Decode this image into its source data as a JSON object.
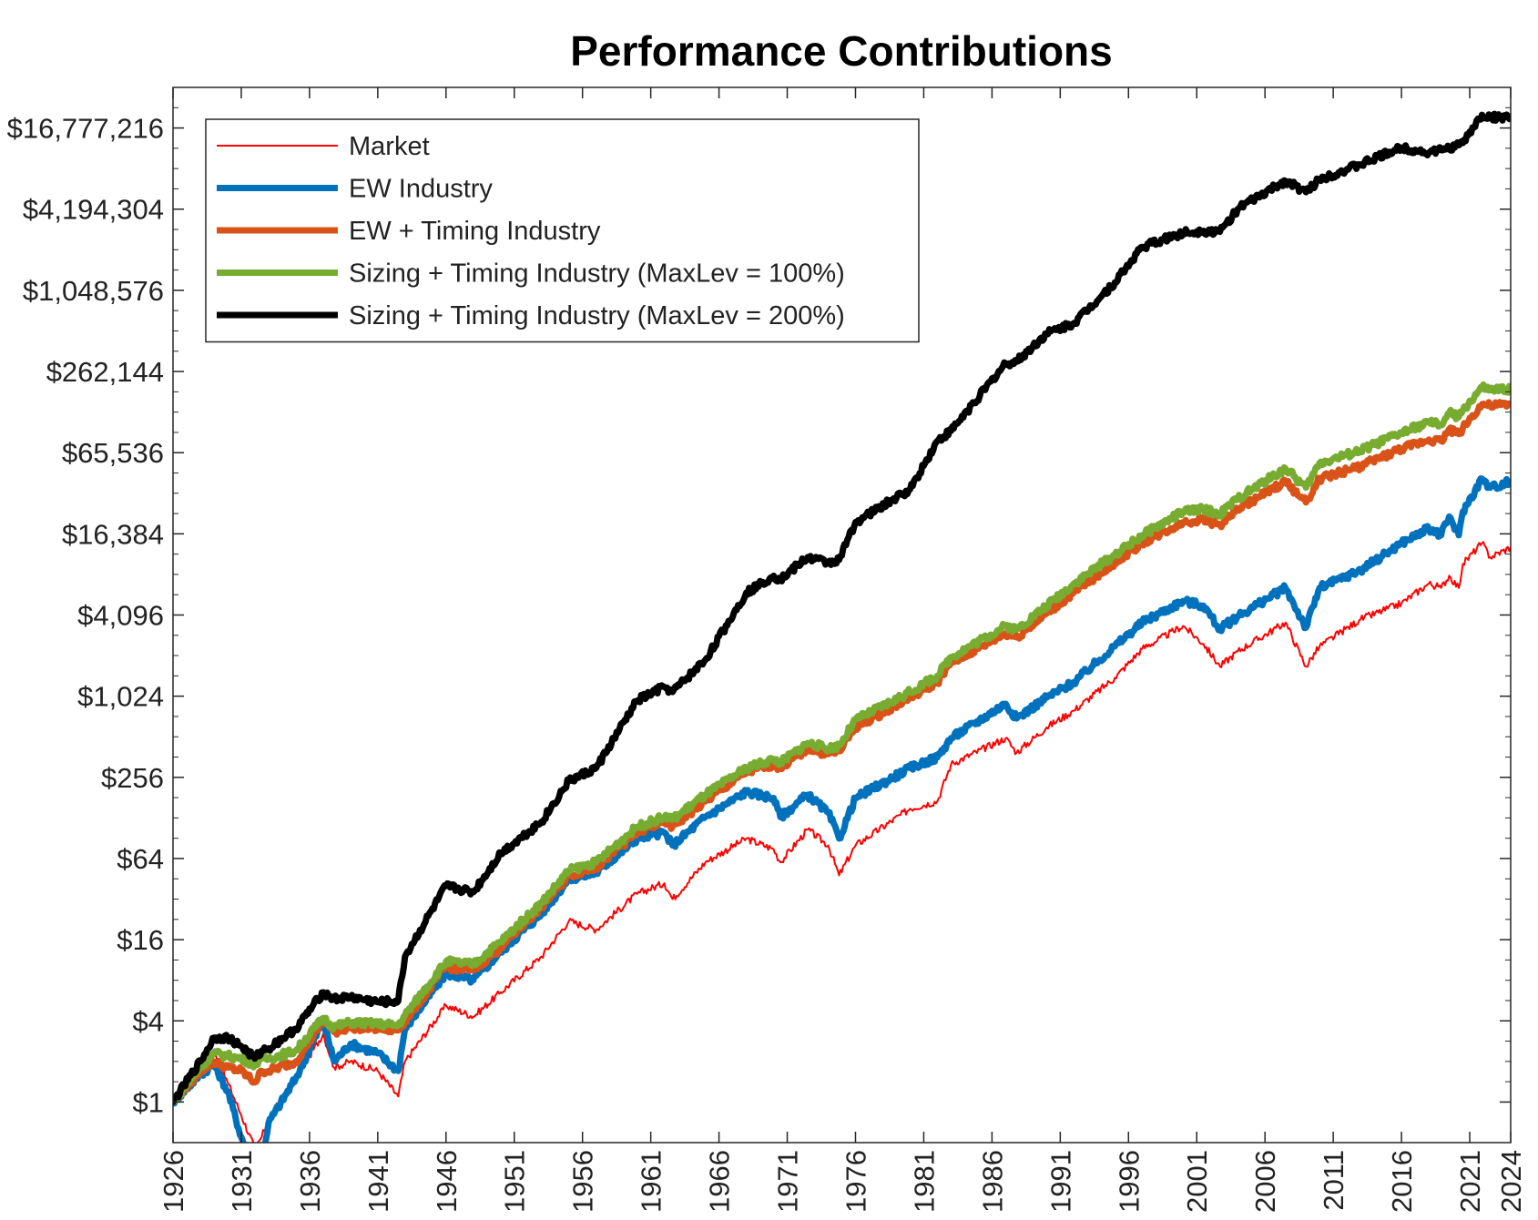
{
  "chart_data": {
    "type": "line",
    "title": "Performance Contributions",
    "xlabel": "",
    "ylabel": "",
    "y_scale": "log2",
    "ylim": [
      0.5,
      33554432
    ],
    "xlim": [
      1926,
      2024
    ],
    "x_ticks": [
      "1926",
      "1931",
      "1936",
      "1941",
      "1946",
      "1951",
      "1956",
      "1961",
      "1966",
      "1971",
      "1976",
      "1981",
      "1986",
      "1991",
      "1996",
      "2001",
      "2006",
      "2011",
      "2016",
      "2021",
      "2024"
    ],
    "y_ticks": [
      {
        "value": 1,
        "label": "$1"
      },
      {
        "value": 4,
        "label": "$4"
      },
      {
        "value": 16,
        "label": "$16"
      },
      {
        "value": 64,
        "label": "$64"
      },
      {
        "value": 256,
        "label": "$256"
      },
      {
        "value": 1024,
        "label": "$1,024"
      },
      {
        "value": 4096,
        "label": "$4,096"
      },
      {
        "value": 16384,
        "label": "$16,384"
      },
      {
        "value": 65536,
        "label": "$65,536"
      },
      {
        "value": 262144,
        "label": "$262,144"
      },
      {
        "value": 1048576,
        "label": "$1,048,576"
      },
      {
        "value": 4194304,
        "label": "$4,194,304"
      },
      {
        "value": 16777216,
        "label": "$16,777,216"
      }
    ],
    "legend_position": "top-left",
    "grid": false,
    "series": [
      {
        "name": "Market",
        "color": "#ff0000",
        "width": 2,
        "x": [
          1926,
          1928,
          1929,
          1930,
          1931,
          1932,
          1932.5,
          1933,
          1935,
          1937,
          1937.8,
          1939,
          1941,
          1942.5,
          1943,
          1946,
          1948,
          1950,
          1953,
          1955,
          1957,
          1960,
          1962,
          1962.6,
          1965,
          1968,
          1970,
          1970.5,
          1972.5,
          1974,
          1974.8,
          1976,
          1980,
          1982,
          1983,
          1987,
          1987.8,
          1990,
          1992,
          1995,
          1997,
          2000,
          2001.5,
          2002.7,
          2004,
          2007.5,
          2009,
          2010,
          2013,
          2016,
          2018,
          2018.9,
          2019.5,
          2020.2,
          2020.5,
          2021.9,
          2022.5,
          2024
        ],
        "y": [
          1,
          1.7,
          2.3,
          1.4,
          0.8,
          0.45,
          0.55,
          0.75,
          1.5,
          3.2,
          1.8,
          2.0,
          1.7,
          1.1,
          2.0,
          5.2,
          4.3,
          6.5,
          12,
          22,
          19,
          35,
          42,
          32,
          60,
          90,
          75,
          60,
          105,
          80,
          48,
          80,
          150,
          170,
          320,
          500,
          390,
          600,
          800,
          1400,
          2300,
          3400,
          2500,
          1700,
          2200,
          3600,
          1700,
          2400,
          3800,
          5000,
          7000,
          6500,
          8000,
          6500,
          9800,
          14000,
          11000,
          13000
        ]
      },
      {
        "name": "EW Industry",
        "color": "#0072bd",
        "width": 7,
        "x": [
          1926,
          1928,
          1929,
          1930,
          1931,
          1932,
          1932.5,
          1933,
          1935,
          1937,
          1937.8,
          1939,
          1941,
          1942.5,
          1943,
          1946,
          1948,
          1950,
          1953,
          1955,
          1957,
          1960,
          1962,
          1962.6,
          1965,
          1968,
          1970,
          1970.5,
          1972.5,
          1974,
          1974.8,
          1976,
          1980,
          1982,
          1983,
          1987,
          1987.8,
          1990,
          1992,
          1995,
          1997,
          2000,
          2001.5,
          2002.7,
          2004,
          2007.5,
          2009,
          2010,
          2013,
          2016,
          2018,
          2018.9,
          2019.5,
          2020.2,
          2020.5,
          2021.9,
          2022.5,
          2024
        ],
        "y": [
          1,
          1.6,
          1.9,
          1.2,
          0.55,
          0.3,
          0.35,
          0.7,
          1.5,
          4.0,
          2.0,
          2.7,
          2.3,
          1.7,
          3.5,
          9,
          8,
          13,
          25,
          45,
          50,
          90,
          100,
          80,
          130,
          200,
          180,
          130,
          190,
          140,
          90,
          180,
          300,
          360,
          500,
          900,
          700,
          1000,
          1300,
          2400,
          3600,
          5200,
          4800,
          3200,
          4000,
          6500,
          3300,
          6500,
          8800,
          14000,
          18000,
          16000,
          22000,
          16000,
          24000,
          42000,
          36000,
          40000
        ]
      },
      {
        "name": "EW + Timing Industry",
        "color": "#d95319",
        "width": 7,
        "x": [
          1926,
          1928,
          1929,
          1930,
          1931,
          1932,
          1932.5,
          1933,
          1935,
          1937,
          1937.8,
          1939,
          1941,
          1942.5,
          1943,
          1946,
          1948,
          1950,
          1953,
          1955,
          1957,
          1960,
          1962,
          1962.6,
          1965,
          1968,
          1970,
          1970.5,
          1972.5,
          1974,
          1974.8,
          1976,
          1980,
          1982,
          1983,
          1987,
          1987.8,
          1990,
          1992,
          1995,
          1997,
          2000,
          2001.5,
          2002.7,
          2004,
          2007.5,
          2009,
          2010,
          2013,
          2016,
          2018,
          2018.9,
          2019.5,
          2020.2,
          2020.5,
          2021.9,
          2022.5,
          2024
        ],
        "y": [
          1,
          1.7,
          2.0,
          1.8,
          1.7,
          1.4,
          1.7,
          1.7,
          2.0,
          4.0,
          3.3,
          3.6,
          3.5,
          3.4,
          4.0,
          10,
          9.5,
          14,
          28,
          48,
          55,
          100,
          120,
          110,
          170,
          280,
          320,
          300,
          420,
          380,
          400,
          600,
          1000,
          1300,
          1800,
          3000,
          2800,
          4200,
          6000,
          10000,
          14000,
          20000,
          21000,
          19000,
          25000,
          40000,
          28000,
          42000,
          52000,
          70000,
          82000,
          80000,
          98000,
          90000,
          100000,
          150000,
          145000,
          150000
        ]
      },
      {
        "name": "Sizing + Timing Industry (MaxLev = 100%)",
        "color": "#77ac30",
        "width": 7,
        "x": [
          1926,
          1928,
          1929,
          1930,
          1931,
          1932,
          1932.5,
          1933,
          1935,
          1937,
          1937.8,
          1939,
          1941,
          1942.5,
          1943,
          1946,
          1948,
          1950,
          1953,
          1955,
          1957,
          1960,
          1962,
          1962.6,
          1965,
          1968,
          1970,
          1970.5,
          1972.5,
          1974,
          1974.8,
          1976,
          1980,
          1982,
          1983,
          1987,
          1987.8,
          1990,
          1992,
          1995,
          1997,
          2000,
          2001.5,
          2002.7,
          2004,
          2007.5,
          2009,
          2010,
          2013,
          2016,
          2018,
          2018.9,
          2019.5,
          2020.2,
          2020.5,
          2021.9,
          2022.5,
          2024
        ],
        "y": [
          1,
          1.8,
          2.3,
          2.2,
          2.1,
          1.9,
          2.1,
          2.1,
          2.4,
          4.2,
          3.6,
          3.9,
          3.8,
          3.7,
          4.4,
          11,
          10.5,
          15.5,
          30,
          52,
          60,
          110,
          130,
          125,
          190,
          300,
          350,
          330,
          460,
          420,
          440,
          680,
          1100,
          1450,
          2000,
          3400,
          3200,
          4800,
          7000,
          11500,
          16000,
          24000,
          25000,
          23000,
          30000,
          50000,
          36000,
          55000,
          68000,
          92000,
          110000,
          105000,
          130000,
          120000,
          135000,
          200000,
          190000,
          195000
        ]
      },
      {
        "name": "Sizing + Timing Industry (MaxLev = 200%)",
        "color": "#000000",
        "width": 7,
        "x": [
          1926,
          1928,
          1929,
          1930,
          1931,
          1932,
          1932.5,
          1933,
          1935,
          1937,
          1937.8,
          1939,
          1941,
          1942.5,
          1943,
          1946,
          1948,
          1950,
          1953,
          1955,
          1957,
          1960,
          1962,
          1962.6,
          1965,
          1968,
          1970,
          1970.5,
          1972.5,
          1974,
          1974.8,
          1976,
          1980,
          1982,
          1983,
          1987,
          1987.8,
          1990,
          1992,
          1995,
          1997,
          2000,
          2001.5,
          2002.7,
          2004,
          2007.5,
          2009,
          2010,
          2013,
          2016,
          2018,
          2018.9,
          2019.5,
          2020.2,
          2020.5,
          2021.9,
          2022.5,
          2024
        ],
        "y": [
          1,
          2.0,
          3.0,
          3.0,
          2.6,
          2.1,
          2.4,
          2.5,
          3.5,
          6.5,
          5.8,
          6.0,
          5.5,
          5.6,
          12,
          40,
          36,
          70,
          120,
          240,
          300,
          950,
          1200,
          1100,
          1900,
          6000,
          8000,
          7500,
          11000,
          10000,
          10500,
          20000,
          35000,
          80000,
          95000,
          300000,
          310000,
          500000,
          600000,
          1200000,
          2200000,
          2800000,
          2900000,
          2850000,
          4200000,
          6800000,
          5600000,
          7000000,
          9000000,
          12000000,
          11000000,
          11500000,
          12000000,
          12500000,
          13000000,
          21000000,
          20000000,
          20500000
        ]
      }
    ]
  }
}
